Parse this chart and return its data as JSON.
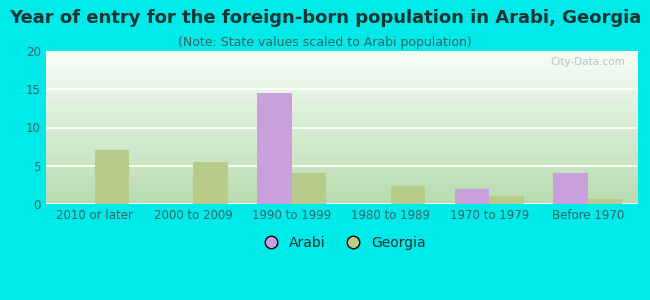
{
  "title": "Year of entry for the foreign-born population in Arabi, Georgia",
  "subtitle": "(Note: State values scaled to Arabi population)",
  "categories": [
    "2010 or later",
    "2000 to 2009",
    "1990 to 1999",
    "1980 to 1989",
    "1970 to 1979",
    "Before 1970"
  ],
  "arabi_values": [
    0,
    0,
    14.5,
    0,
    2.0,
    4.0
  ],
  "georgia_values": [
    7.0,
    5.5,
    4.1,
    2.4,
    1.1,
    0.7
  ],
  "arabi_color": "#c9a0dc",
  "georgia_color": "#b8cc8a",
  "background_outer": "#00eaea",
  "background_inner_bottom": "#b8dcb0",
  "background_inner_top": "#f8fdf8",
  "ylim": [
    0,
    20
  ],
  "yticks": [
    0,
    5,
    10,
    15,
    20
  ],
  "bar_width": 0.35,
  "legend_labels": [
    "Arabi",
    "Georgia"
  ],
  "title_fontsize": 13,
  "subtitle_fontsize": 9,
  "tick_fontsize": 8.5,
  "watermark": "City-Data.com"
}
